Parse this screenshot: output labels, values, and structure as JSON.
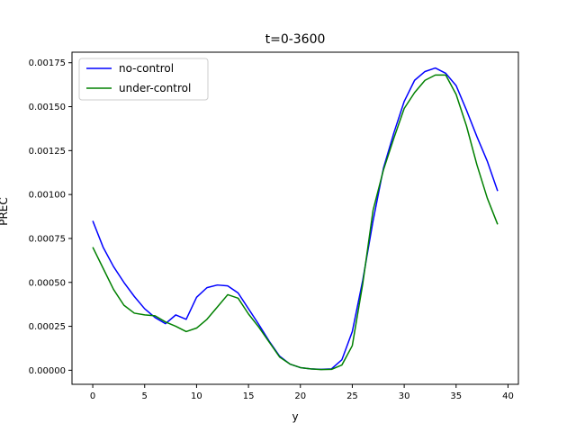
{
  "chart_data": {
    "type": "line",
    "title": "t=0-3600",
    "xlabel": "y",
    "ylabel": "PREC",
    "xlim": [
      -2,
      41
    ],
    "ylim": [
      -8e-05,
      0.00181
    ],
    "x_ticks": [
      0,
      5,
      10,
      15,
      20,
      25,
      30,
      35,
      40
    ],
    "y_ticks": [
      0,
      0.00025,
      0.0005,
      0.00075,
      0.001,
      0.00125,
      0.0015,
      0.00175
    ],
    "x_tick_labels": [
      "0",
      "5",
      "10",
      "15",
      "20",
      "25",
      "30",
      "35",
      "40"
    ],
    "y_tick_labels": [
      "0.00000",
      "0.00025",
      "0.00050",
      "0.00075",
      "0.00100",
      "0.00125",
      "0.00150",
      "0.00175"
    ],
    "grid": false,
    "legend_position": "top-left",
    "x": [
      0,
      1,
      2,
      3,
      4,
      5,
      6,
      7,
      8,
      9,
      10,
      11,
      12,
      13,
      14,
      15,
      16,
      17,
      18,
      19,
      20,
      21,
      22,
      23,
      24,
      25,
      26,
      27,
      28,
      29,
      30,
      31,
      32,
      33,
      34,
      35,
      36,
      37,
      38,
      39
    ],
    "series": [
      {
        "name": "no-control",
        "color": "#0000ff",
        "values": [
          0.00085,
          0.0007,
          0.00059,
          0.0005,
          0.00042,
          0.00035,
          0.0003,
          0.000265,
          0.000315,
          0.00029,
          0.000415,
          0.00047,
          0.000485,
          0.00048,
          0.00044,
          0.00035,
          0.00026,
          0.000165,
          8e-05,
          3.5e-05,
          1.5e-05,
          8e-06,
          5e-06,
          8e-06,
          6e-05,
          0.00022,
          0.00051,
          0.00085,
          0.00115,
          0.00135,
          0.00153,
          0.00165,
          0.0017,
          0.00172,
          0.00169,
          0.00162,
          0.00148,
          0.00133,
          0.00119,
          0.00102
        ]
      },
      {
        "name": "under-control",
        "color": "#008000",
        "values": [
          0.0007,
          0.00058,
          0.00046,
          0.00037,
          0.000325,
          0.000315,
          0.00031,
          0.000275,
          0.00025,
          0.00022,
          0.00024,
          0.00029,
          0.00036,
          0.00043,
          0.00041,
          0.00032,
          0.000245,
          0.00016,
          7.5e-05,
          3.5e-05,
          1.5e-05,
          8e-06,
          4e-06,
          5e-06,
          3e-05,
          0.00014,
          0.00049,
          0.00091,
          0.00114,
          0.00132,
          0.00149,
          0.00158,
          0.00165,
          0.00168,
          0.00168,
          0.00157,
          0.00139,
          0.00117,
          0.00098,
          0.00083
        ]
      }
    ]
  }
}
